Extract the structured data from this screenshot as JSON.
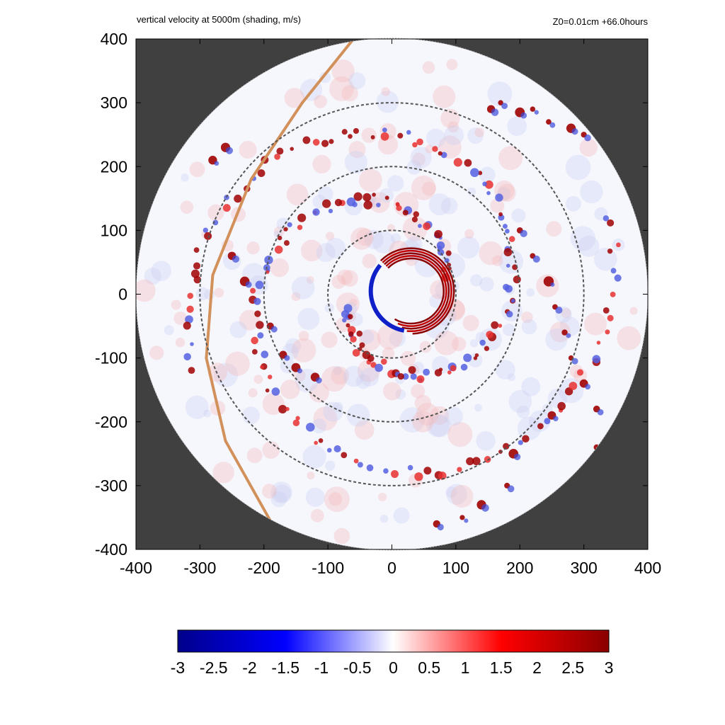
{
  "figure": {
    "title_left": "vertical velocity at 5000m (shading, m/s)",
    "title_right": "Z0=0.01cm  +66.0hours"
  },
  "chart_data": {
    "type": "heatmap",
    "title": "vertical velocity at 5000m (shading, m/s)",
    "subtitle": "Z0=0.01cm  +66.0hours",
    "xlabel": "",
    "ylabel": "",
    "xlim": [
      -400,
      400
    ],
    "ylim": [
      -400,
      400
    ],
    "x_ticks": [
      -400,
      -300,
      -200,
      -100,
      0,
      100,
      200,
      300,
      400
    ],
    "y_ticks": [
      -400,
      -300,
      -200,
      -100,
      0,
      100,
      200,
      300,
      400
    ],
    "domain_radius": 400,
    "reference_circles_radii": [
      100,
      200,
      300
    ],
    "colorbar": {
      "min": -3,
      "max": 3,
      "ticks": [
        -3,
        -2.5,
        -2,
        -1.5,
        -1,
        -0.5,
        0,
        0.5,
        1,
        1.5,
        2,
        2.5,
        3
      ],
      "tick_labels": [
        "-3",
        "-2.5",
        "-2",
        "-1.5",
        "-1",
        "-0.5",
        "0",
        "0.5",
        "1",
        "1.5",
        "2",
        "2.5",
        "3"
      ],
      "colors": [
        "#00008b",
        "#0000ff",
        "#ffffff",
        "#ff0000",
        "#8b0000"
      ]
    },
    "background_color": "#404040",
    "feature_line_color": "#d2905a",
    "feature_line_points": [
      [
        -60,
        400
      ],
      [
        -140,
        300
      ],
      [
        -220,
        180
      ],
      [
        -280,
        30
      ],
      [
        -290,
        -100
      ],
      [
        -260,
        -230
      ],
      [
        -190,
        -355
      ]
    ],
    "eyewall": {
      "center": [
        30,
        5
      ],
      "radius": 55,
      "positive_arc_deg": [
        -120,
        135
      ],
      "negative_arc_deg": [
        140,
        260
      ]
    },
    "rainbands": [
      {
        "r0": 70,
        "r1": 330,
        "theta0_deg": 200,
        "theta1_deg": 560
      },
      {
        "r0": 90,
        "r1": 360,
        "theta0_deg": 20,
        "theta1_deg": 380
      }
    ],
    "outer_cells": [
      [
        155,
        290
      ],
      [
        170,
        300
      ],
      [
        200,
        285
      ],
      [
        220,
        290
      ],
      [
        245,
        270
      ],
      [
        280,
        260
      ],
      [
        300,
        250
      ],
      [
        330,
        240
      ],
      [
        200,
        100
      ],
      [
        220,
        60
      ],
      [
        245,
        20
      ],
      [
        255,
        -20
      ],
      [
        270,
        -60
      ],
      [
        280,
        -100
      ],
      [
        300,
        -140
      ],
      [
        320,
        -180
      ],
      [
        320,
        -240
      ],
      [
        250,
        -190
      ],
      [
        190,
        -250
      ],
      [
        180,
        -300
      ],
      [
        140,
        -330
      ],
      [
        110,
        -350
      ],
      [
        70,
        -360
      ],
      [
        -250,
        60
      ],
      [
        -230,
        20
      ],
      [
        -190,
        -50
      ],
      [
        -170,
        -95
      ],
      [
        -150,
        -115
      ],
      [
        -120,
        -130
      ],
      [
        -280,
        210
      ],
      [
        -260,
        230
      ]
    ]
  }
}
